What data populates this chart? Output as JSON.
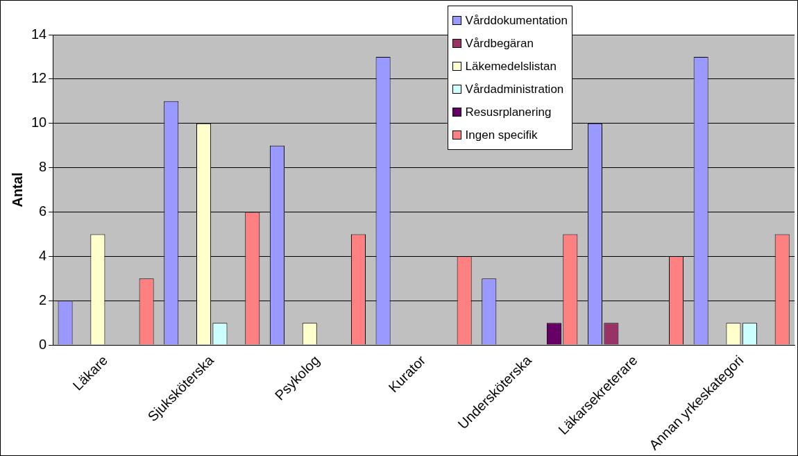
{
  "chart_data": {
    "type": "bar",
    "ylabel": "Antal",
    "categories": [
      "Läkare",
      "Sjuksköterska",
      "Psykolog",
      "Kurator",
      "Undersköterska",
      "Läkarsekreterare",
      "Annan yrkeskategori"
    ],
    "series": [
      {
        "name": "Vårddokumentation",
        "color": "#9999ff",
        "values": [
          2,
          11,
          9,
          13,
          3,
          10,
          13
        ]
      },
      {
        "name": "Vårdbegäran",
        "color": "#993366",
        "values": [
          null,
          null,
          null,
          null,
          null,
          1,
          null
        ]
      },
      {
        "name": "Läkemedelslistan",
        "color": "#ffffcc",
        "values": [
          5,
          10,
          1,
          null,
          null,
          null,
          1
        ]
      },
      {
        "name": "Vårdadministration",
        "color": "#ccffff",
        "values": [
          null,
          1,
          null,
          null,
          null,
          null,
          1
        ]
      },
      {
        "name": "Resusrplanering",
        "color": "#660066",
        "values": [
          null,
          null,
          null,
          null,
          1,
          null,
          null
        ]
      },
      {
        "name": "Ingen specifik",
        "color": "#ff8080",
        "values": [
          3,
          6,
          5,
          4,
          5,
          4,
          5
        ]
      }
    ],
    "ylim": [
      0,
      14
    ],
    "yticks": [
      0,
      2,
      4,
      6,
      8,
      10,
      12,
      14
    ],
    "grid": "y",
    "legend": "top right"
  }
}
